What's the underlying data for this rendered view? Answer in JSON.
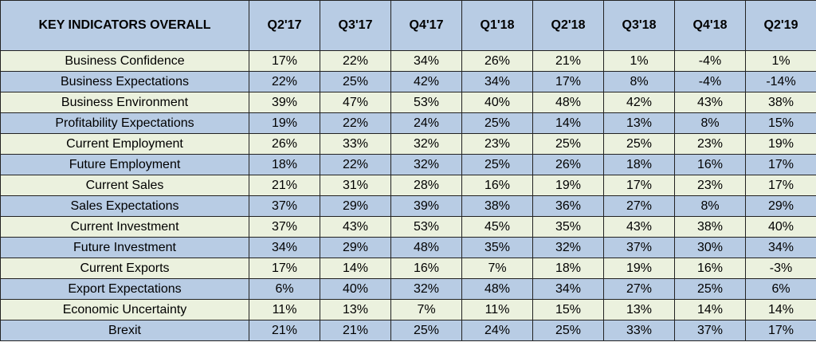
{
  "chart_data": {
    "type": "table",
    "title": "KEY INDICATORS OVERALL",
    "columns": [
      "Q2'17",
      "Q3'17",
      "Q4'17",
      "Q1'18",
      "Q2'18",
      "Q3'18",
      "Q4'18",
      "Q2'19"
    ],
    "rows": [
      {
        "label": "Business Confidence",
        "values": [
          "17%",
          "22%",
          "34%",
          "26%",
          "21%",
          "1%",
          "-4%",
          "1%"
        ]
      },
      {
        "label": "Business Expectations",
        "values": [
          "22%",
          "25%",
          "42%",
          "34%",
          "17%",
          "8%",
          "-4%",
          "-14%"
        ]
      },
      {
        "label": "Business Environment",
        "values": [
          "39%",
          "47%",
          "53%",
          "40%",
          "48%",
          "42%",
          "43%",
          "38%"
        ]
      },
      {
        "label": "Profitability Expectations",
        "values": [
          "19%",
          "22%",
          "24%",
          "25%",
          "14%",
          "13%",
          "8%",
          "15%"
        ]
      },
      {
        "label": "Current Employment",
        "values": [
          "26%",
          "33%",
          "32%",
          "23%",
          "25%",
          "25%",
          "23%",
          "19%"
        ]
      },
      {
        "label": "Future Employment",
        "values": [
          "18%",
          "22%",
          "32%",
          "25%",
          "26%",
          "18%",
          "16%",
          "17%"
        ]
      },
      {
        "label": "Current Sales",
        "values": [
          "21%",
          "31%",
          "28%",
          "16%",
          "19%",
          "17%",
          "23%",
          "17%"
        ]
      },
      {
        "label": "Sales Expectations",
        "values": [
          "37%",
          "29%",
          "39%",
          "38%",
          "36%",
          "27%",
          "8%",
          "29%"
        ]
      },
      {
        "label": "Current Investment",
        "values": [
          "37%",
          "43%",
          "53%",
          "45%",
          "35%",
          "43%",
          "38%",
          "40%"
        ]
      },
      {
        "label": "Future Investment",
        "values": [
          "34%",
          "29%",
          "48%",
          "35%",
          "32%",
          "37%",
          "30%",
          "34%"
        ]
      },
      {
        "label": "Current Exports",
        "values": [
          "17%",
          "14%",
          "16%",
          "7%",
          "18%",
          "19%",
          "16%",
          "-3%"
        ]
      },
      {
        "label": "Export Expectations",
        "values": [
          "6%",
          "40%",
          "32%",
          "48%",
          "34%",
          "27%",
          "25%",
          "6%"
        ]
      },
      {
        "label": "Economic Uncertainty",
        "values": [
          "11%",
          "13%",
          "7%",
          "11%",
          "15%",
          "13%",
          "14%",
          "14%"
        ]
      },
      {
        "label": "Brexit",
        "values": [
          "21%",
          "21%",
          "25%",
          "24%",
          "25%",
          "33%",
          "37%",
          "17%"
        ]
      }
    ]
  },
  "colors": {
    "header_bg": "#b8cce4",
    "row_green": "#ebf1de",
    "row_blue": "#b8cce4",
    "border": "#222222"
  }
}
